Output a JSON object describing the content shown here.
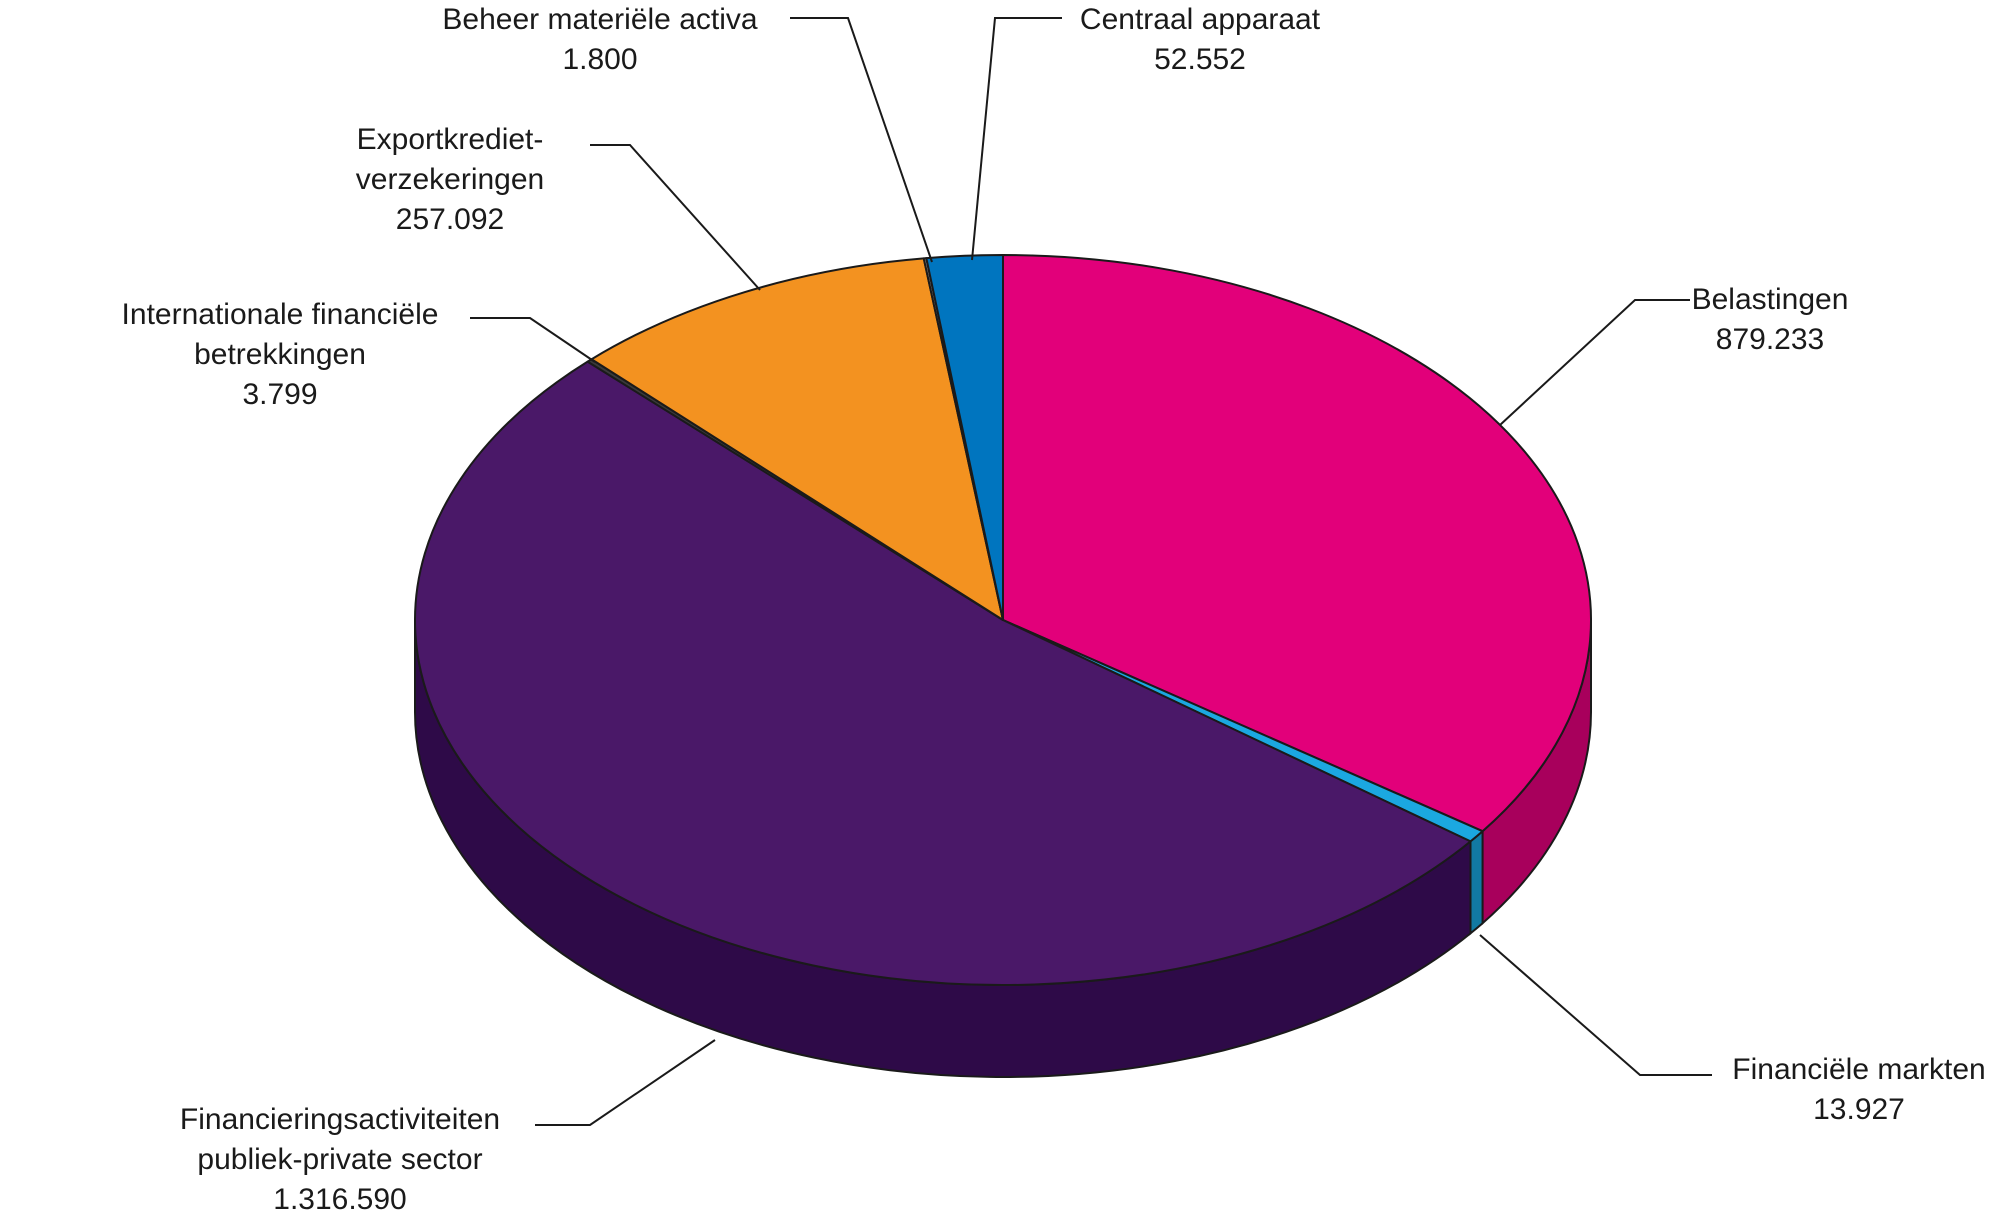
{
  "chart_data": {
    "type": "pie",
    "title": "",
    "values_unit": "",
    "slices": [
      {
        "name": "Belastingen",
        "label_lines": [
          "Belastingen"
        ],
        "value_label": "879.233",
        "value": 879233,
        "color": "#e2007a",
        "side_color": "#a8005c"
      },
      {
        "name": "Financiële markten",
        "label_lines": [
          "Financiële markten"
        ],
        "value_label": "13.927",
        "value": 13927,
        "color": "#1ba8e0",
        "side_color": "#127aa3"
      },
      {
        "name": "Financieringsactiviteiten publiek-private sector",
        "label_lines": [
          "Financieringsactiviteiten",
          "publiek-private sector"
        ],
        "value_label": "1.316.590",
        "value": 1316590,
        "color": "#4a1868",
        "side_color": "#2e0a48"
      },
      {
        "name": "Internationale financiële betrekkingen",
        "label_lines": [
          "Internationale financiële",
          "betrekkingen"
        ],
        "value_label": "3.799",
        "value": 3799,
        "color": "#3a3a3a",
        "side_color": "#222222"
      },
      {
        "name": "Exportkredietverzekeringen",
        "label_lines": [
          "Exportkrediet-",
          "verzekeringen"
        ],
        "value_label": "257.092",
        "value": 257092,
        "color": "#f39220",
        "side_color": "#b86a10"
      },
      {
        "name": "Beheer materiële activa",
        "label_lines": [
          "Beheer materiële activa"
        ],
        "value_label": "1.800",
        "value": 1800,
        "color": "#888888",
        "side_color": "#555555"
      },
      {
        "name": "Centraal apparaat",
        "label_lines": [
          "Centraal apparaat"
        ],
        "value_label": "52.552",
        "value": 52552,
        "color": "#0075bf",
        "side_color": "#004f85"
      }
    ],
    "start_direction": "top",
    "direction": "clockwise",
    "style": "3d-tilted",
    "legend": "none"
  }
}
